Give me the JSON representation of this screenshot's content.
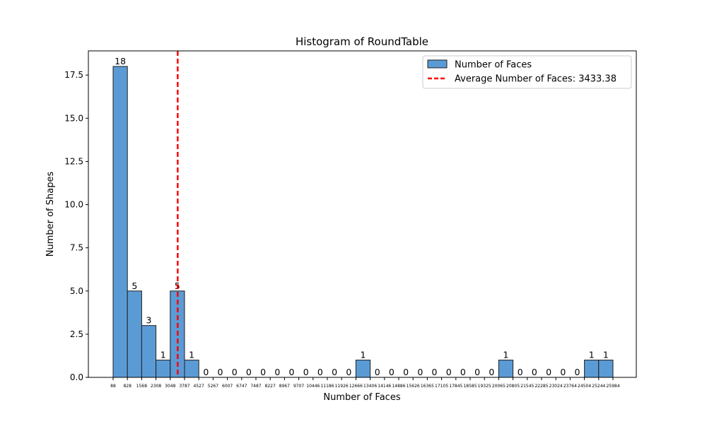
{
  "chart_data": {
    "type": "bar",
    "title": "Histogram of RoundTable",
    "xlabel": "Number of Faces",
    "ylabel": "Number of Shapes",
    "ylim": [
      0,
      18.9
    ],
    "yticks": [
      0.0,
      2.5,
      5.0,
      7.5,
      10.0,
      12.5,
      15.0,
      17.5
    ],
    "ytick_labels": [
      "0.0",
      "2.5",
      "5.0",
      "7.5",
      "10.0",
      "12.5",
      "15.0",
      "17.5"
    ],
    "bin_edges": [
      88,
      828,
      1568,
      2308,
      3048,
      3787,
      4527,
      5267,
      6007,
      6747,
      7487,
      8227,
      8967,
      9707,
      10446,
      11186,
      11926,
      12666,
      13406,
      14146,
      14886,
      15626,
      16365,
      17105,
      17845,
      18585,
      19325,
      20065,
      20805,
      21545,
      22285,
      23024,
      23764,
      24504,
      25244,
      25984
    ],
    "xtick_labels": [
      "88",
      "828",
      "1568",
      "2308",
      "3048",
      "3787",
      "4527",
      "5267",
      "6007",
      "6747",
      "7487",
      "8227",
      "8967",
      "9707",
      "10446",
      "11186",
      "11926",
      "12666",
      "13406",
      "14146",
      "14886",
      "15626",
      "16365",
      "17105",
      "17845",
      "18585",
      "19325",
      "20065",
      "20805",
      "21545",
      "22285",
      "23024",
      "23764",
      "24504",
      "25244",
      "25984"
    ],
    "series": [
      {
        "name": "Number of Faces",
        "color": "#5b9bd5",
        "values": [
          18,
          5,
          3,
          1,
          5,
          1,
          0,
          0,
          0,
          0,
          0,
          0,
          0,
          0,
          0,
          0,
          0,
          1,
          0,
          0,
          0,
          0,
          0,
          0,
          0,
          0,
          0,
          1,
          0,
          0,
          0,
          0,
          0,
          1,
          1
        ]
      }
    ],
    "bar_color": "#5b9bd5",
    "bar_edge_color": "#1f1f1f",
    "average": {
      "value": 3433.38,
      "label": "Average Number of Faces: 3433.38",
      "color": "#ff0000"
    },
    "grid": false,
    "legend_position": "top-right"
  }
}
